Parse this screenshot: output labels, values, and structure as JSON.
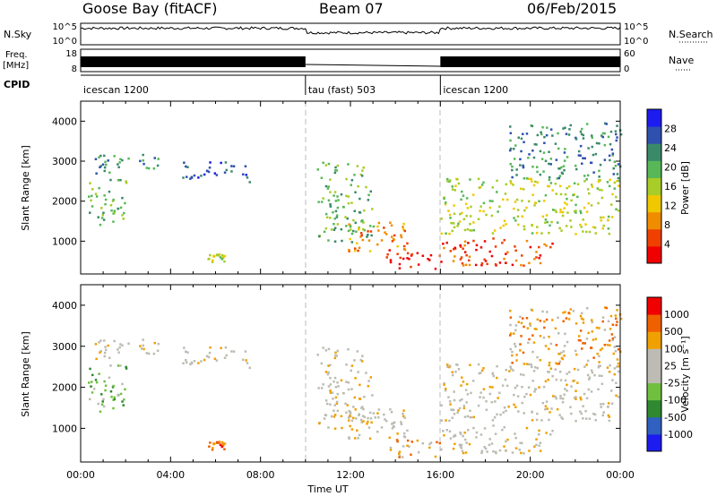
{
  "header": {
    "station": "Goose Bay (fitACF)",
    "beam": "Beam 07",
    "date": "06/Feb/2015"
  },
  "strip_labels": {
    "nsky": "N.Sky",
    "nsearch": "N.Search",
    "freq": "Freq.",
    "freq_unit": "[MHz]",
    "nave": "Nave",
    "cpid": "CPID",
    "nsky_ticks": [
      "10^5",
      "10^0"
    ],
    "freq_ticks": [
      "18",
      "8"
    ],
    "nave_ticks": [
      "60",
      "0"
    ]
  },
  "cpid_segments": [
    {
      "label": "icescan 1200",
      "start": 0,
      "end": 10
    },
    {
      "label": "tau (fast) 503",
      "start": 10,
      "end": 16
    },
    {
      "label": "icescan 1200",
      "start": 16,
      "end": 24
    }
  ],
  "colors": {
    "power": [
      "#1c1cf0",
      "#3050b0",
      "#3a8a6a",
      "#58b858",
      "#a8cc28",
      "#f0c800",
      "#f08c00",
      "#f04000",
      "#f00000"
    ],
    "velocity": [
      "#f00000",
      "#f06000",
      "#f0a000",
      "#bcbcb4",
      "#bcbcb4",
      "#70c040",
      "#308830",
      "#3060c0",
      "#1c1cf0"
    ]
  },
  "chart_data": [
    {
      "type": "heatmap",
      "ylabel": "Slant Range [km]",
      "xlabel": "Time UT",
      "x_ticks": [
        "00:00",
        "04:00",
        "08:00",
        "12:00",
        "16:00",
        "20:00",
        "00:00"
      ],
      "y_ticks": [
        "1000",
        "2000",
        "3000",
        "4000"
      ],
      "xlim": [
        0,
        24
      ],
      "ylim": [
        180,
        4500
      ],
      "colorbar_label": "Power [dB]",
      "colorbar_ticks": [
        "4",
        "8",
        "12",
        "16",
        "20",
        "24",
        "28"
      ],
      "regions": [
        {
          "t": [
            0.3,
            2.0
          ],
          "r": [
            1400,
            2600
          ],
          "level": 3
        },
        {
          "t": [
            0.5,
            3.5
          ],
          "r": [
            2700,
            3200
          ],
          "level": 2
        },
        {
          "t": [
            4.5,
            7.5
          ],
          "r": [
            2500,
            3000
          ],
          "level": 1
        },
        {
          "t": [
            5.6,
            6.4
          ],
          "r": [
            500,
            700
          ],
          "level": 4
        },
        {
          "t": [
            10.5,
            13.0
          ],
          "r": [
            1000,
            3000
          ],
          "level": 3
        },
        {
          "t": [
            11.8,
            14.5
          ],
          "r": [
            700,
            1500
          ],
          "level": 6
        },
        {
          "t": [
            13.5,
            16.0
          ],
          "r": [
            300,
            800
          ],
          "level": 8
        },
        {
          "t": [
            16.0,
            21.0
          ],
          "r": [
            400,
            1100
          ],
          "level": 7
        },
        {
          "t": [
            16.0,
            24.0
          ],
          "r": [
            1200,
            2600
          ],
          "level": 4
        },
        {
          "t": [
            19.0,
            24.0
          ],
          "r": [
            2600,
            4000
          ],
          "level": 2
        }
      ]
    },
    {
      "type": "heatmap",
      "ylabel": "Slant Range [km]",
      "xlabel": "Time UT",
      "x_ticks": [
        "00:00",
        "04:00",
        "08:00",
        "12:00",
        "16:00",
        "20:00",
        "00:00"
      ],
      "y_ticks": [
        "1000",
        "2000",
        "3000",
        "4000"
      ],
      "xlim": [
        0,
        24
      ],
      "ylim": [
        180,
        4500
      ],
      "colorbar_label": "Velocity [m s⁻¹]",
      "colorbar_ticks": [
        "1000",
        "500",
        "100",
        "25",
        "-25",
        "-100",
        "-500",
        "-1000"
      ],
      "regions": [
        {
          "t": [
            0.3,
            2.0
          ],
          "r": [
            1400,
            2600
          ],
          "level": 5
        },
        {
          "t": [
            0.5,
            3.5
          ],
          "r": [
            2700,
            3200
          ],
          "level": 3
        },
        {
          "t": [
            4.5,
            7.5
          ],
          "r": [
            2500,
            3000
          ],
          "level": 3
        },
        {
          "t": [
            5.6,
            6.4
          ],
          "r": [
            500,
            700
          ],
          "level": 1
        },
        {
          "t": [
            10.5,
            13.0
          ],
          "r": [
            1000,
            3000
          ],
          "level": 3
        },
        {
          "t": [
            11.8,
            14.5
          ],
          "r": [
            700,
            1500
          ],
          "level": 3
        },
        {
          "t": [
            13.5,
            16.0
          ],
          "r": [
            300,
            800
          ],
          "level": 2
        },
        {
          "t": [
            16.0,
            21.0
          ],
          "r": [
            400,
            1100
          ],
          "level": 3
        },
        {
          "t": [
            16.0,
            24.0
          ],
          "r": [
            1200,
            2600
          ],
          "level": 3
        },
        {
          "t": [
            19.0,
            24.0
          ],
          "r": [
            2600,
            4000
          ],
          "level": 2
        }
      ]
    }
  ]
}
